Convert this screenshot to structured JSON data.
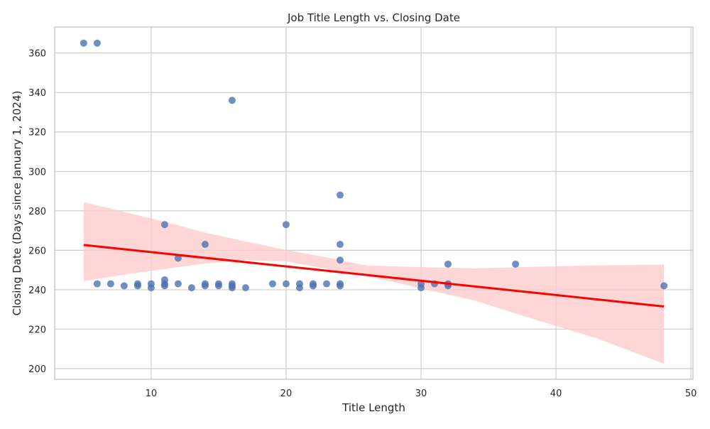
{
  "chart_data": {
    "type": "scatter",
    "title": "Job Title Length vs. Closing Date",
    "xlabel": "Title Length",
    "ylabel": "Closing Date (Days since January 1, 2024)",
    "xlim": [
      2.85,
      50.15
    ],
    "ylim": [
      194.6,
      373.2
    ],
    "x_ticks": [
      10,
      20,
      30,
      40,
      50
    ],
    "y_ticks": [
      200,
      220,
      240,
      260,
      280,
      300,
      320,
      340,
      360
    ],
    "grid": true,
    "colors": {
      "points": "#4c72b0",
      "regression_line": "#ff0000",
      "confidence_band": "#ffcccc",
      "grid": "#cccccc",
      "axes": "#cccccc"
    },
    "series": [
      {
        "type": "scatter",
        "points": [
          [
            5,
            365
          ],
          [
            6,
            365
          ],
          [
            16,
            336
          ],
          [
            24,
            288
          ],
          [
            11,
            273
          ],
          [
            20,
            273
          ],
          [
            14,
            263
          ],
          [
            24,
            263
          ],
          [
            12,
            256
          ],
          [
            24,
            255
          ],
          [
            32,
            253
          ],
          [
            37,
            253
          ],
          [
            11,
            245
          ],
          [
            6,
            243
          ],
          [
            7,
            243
          ],
          [
            8,
            242
          ],
          [
            9,
            243
          ],
          [
            9,
            242
          ],
          [
            10,
            243
          ],
          [
            10,
            241
          ],
          [
            11,
            243
          ],
          [
            11,
            242
          ],
          [
            12,
            243
          ],
          [
            13,
            241
          ],
          [
            14,
            243
          ],
          [
            14,
            242
          ],
          [
            15,
            243
          ],
          [
            15,
            242
          ],
          [
            16,
            243
          ],
          [
            16,
            242
          ],
          [
            16,
            241
          ],
          [
            17,
            241
          ],
          [
            19,
            243
          ],
          [
            20,
            243
          ],
          [
            21,
            243
          ],
          [
            21,
            241
          ],
          [
            22,
            243
          ],
          [
            22,
            242
          ],
          [
            23,
            243
          ],
          [
            24,
            243
          ],
          [
            24,
            242
          ],
          [
            30,
            243
          ],
          [
            30,
            241
          ],
          [
            31,
            243
          ],
          [
            32,
            243
          ],
          [
            32,
            242
          ],
          [
            48,
            242
          ]
        ]
      },
      {
        "type": "regression",
        "line": [
          [
            5,
            262.7
          ],
          [
            48,
            231.5
          ]
        ],
        "band": [
          [
            5,
            244.4,
            284.4
          ],
          [
            8,
            247.6,
            279.5
          ],
          [
            11,
            250.5,
            274.5
          ],
          [
            14,
            253.3,
            269.0
          ],
          [
            17,
            254.9,
            264.5
          ],
          [
            20,
            254.4,
            260.2
          ],
          [
            23,
            250.6,
            256.4
          ],
          [
            26,
            247.0,
            252.2
          ],
          [
            30,
            240.7,
            251.5
          ],
          [
            34,
            234.5,
            250.8
          ],
          [
            38,
            225.8,
            251.6
          ],
          [
            43,
            215.4,
            252.3
          ],
          [
            48,
            202.5,
            252.7
          ]
        ]
      }
    ]
  }
}
